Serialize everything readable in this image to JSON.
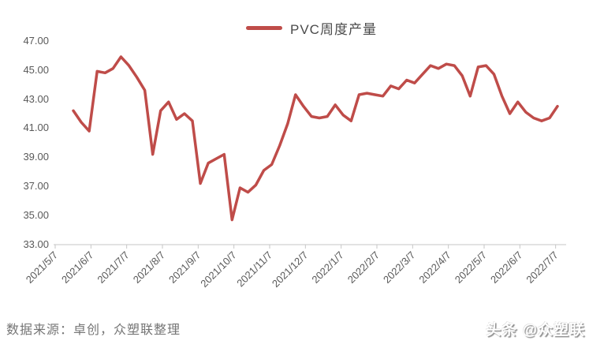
{
  "legend": {
    "label": "PVC周度产量",
    "swatch_color": "#BF4C49"
  },
  "chart_data": {
    "type": "line",
    "title": "PVC周度产量",
    "xlabel": "",
    "ylabel": "",
    "ylim": [
      33,
      47
    ],
    "y_tick_step": 2,
    "grid": false,
    "legend_position": "top",
    "y_tick_labels": [
      "47.00",
      "45.00",
      "43.00",
      "41.00",
      "39.00",
      "37.00",
      "35.00",
      "33.00"
    ],
    "x_tick_labels": [
      "2021/5/7",
      "2021/6/7",
      "2021/7/7",
      "2021/8/7",
      "2021/9/7",
      "2021/10/7",
      "2021/11/7",
      "2021/12/7",
      "2022/1/7",
      "2022/2/7",
      "2022/3/7",
      "2022/4/7",
      "2022/5/7",
      "2022/6/7",
      "2022/7/7"
    ],
    "series": [
      {
        "name": "PVC周度产量",
        "color": "#BF4C49",
        "sampling": "weekly",
        "values": [
          42.2,
          41.4,
          40.8,
          44.9,
          44.8,
          45.1,
          45.9,
          45.3,
          44.5,
          43.6,
          39.2,
          42.2,
          42.8,
          41.6,
          42.0,
          41.5,
          37.2,
          38.6,
          38.9,
          39.2,
          34.7,
          36.9,
          36.6,
          37.1,
          38.1,
          38.5,
          39.8,
          41.3,
          43.3,
          42.5,
          41.8,
          41.7,
          41.8,
          42.6,
          41.9,
          41.5,
          43.3,
          43.4,
          43.3,
          43.2,
          43.9,
          43.7,
          44.3,
          44.1,
          44.7,
          45.3,
          45.1,
          45.4,
          45.3,
          44.6,
          43.2,
          45.2,
          45.3,
          44.7,
          43.2,
          42.0,
          42.8,
          42.1,
          41.7,
          41.5,
          41.7,
          42.5
        ]
      }
    ]
  },
  "footer": {
    "source": "数据来源：卓创，众塑联整理",
    "watermark": "头条 @众塑联"
  },
  "colors": {
    "line": "#BF4C49",
    "axis_line": "#C6C6C6",
    "tick_label": "#595959",
    "source_text": "#757575"
  }
}
